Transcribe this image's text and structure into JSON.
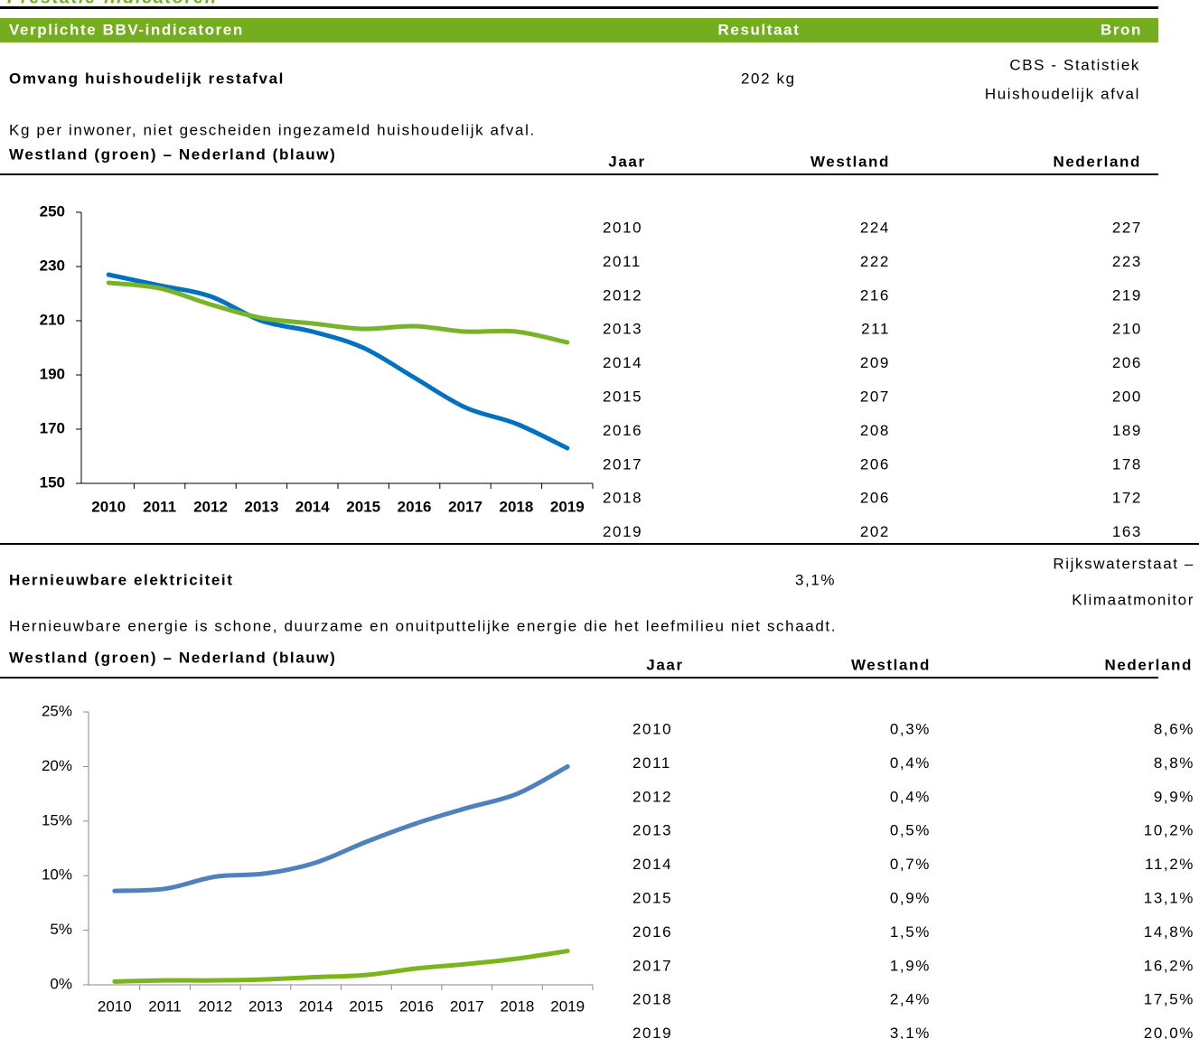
{
  "page_title": "Prestatie-indicatoren",
  "header": {
    "indicator": "Verplichte BBV-indicatoren",
    "result": "Resultaat",
    "source": "Bron"
  },
  "sections": [
    {
      "name": "Omvang huishoudelijk restafval",
      "result": "202 kg",
      "source": [
        "CBS - Statistiek",
        "Huishoudelijk afval"
      ],
      "description": "Kg per inwoner, niet gescheiden ingezameld huishoudelijk afval.",
      "chart_caption": "Westland (groen) – Nederland (blauw)",
      "table": {
        "columns": [
          "Jaar",
          "Westland",
          "Nederland"
        ],
        "rows": [
          [
            "2010",
            "224",
            "227"
          ],
          [
            "2011",
            "222",
            "223"
          ],
          [
            "2012",
            "216",
            "219"
          ],
          [
            "2013",
            "211",
            "210"
          ],
          [
            "2014",
            "209",
            "206"
          ],
          [
            "2015",
            "207",
            "200"
          ],
          [
            "2016",
            "208",
            "189"
          ],
          [
            "2017",
            "206",
            "178"
          ],
          [
            "2018",
            "206",
            "172"
          ],
          [
            "2019",
            "202",
            "163"
          ]
        ]
      },
      "chart": {
        "type": "line",
        "categories": [
          "2010",
          "2011",
          "2012",
          "2013",
          "2014",
          "2015",
          "2016",
          "2017",
          "2018",
          "2019"
        ],
        "series": [
          {
            "color": "#0070c0",
            "values": [
              227,
              223,
              219,
              210,
              206,
              200,
              189,
              178,
              172,
              163
            ]
          },
          {
            "color": "#78b42a",
            "values": [
              224,
              222,
              216,
              211,
              209,
              207,
              208,
              206,
              206,
              202
            ]
          }
        ],
        "ylim": [
          150,
          250
        ],
        "yticks": [
          150,
          170,
          190,
          210,
          230,
          250
        ]
      }
    },
    {
      "name": "Hernieuwbare elektriciteit",
      "result": "3,1%",
      "source": [
        "Rijkswaterstaat –",
        "Klimaatmonitor"
      ],
      "description": "Hernieuwbare energie is schone, duurzame en onuitputtelijke energie die het leefmilieu niet schaadt.",
      "chart_caption": "Westland (groen) – Nederland (blauw)",
      "table": {
        "columns": [
          "Jaar",
          "Westland",
          "Nederland"
        ],
        "rows": [
          [
            "2010",
            "0,3%",
            "8,6%"
          ],
          [
            "2011",
            "0,4%",
            "8,8%"
          ],
          [
            "2012",
            "0,4%",
            "9,9%"
          ],
          [
            "2013",
            "0,5%",
            "10,2%"
          ],
          [
            "2014",
            "0,7%",
            "11,2%"
          ],
          [
            "2015",
            "0,9%",
            "13,1%"
          ],
          [
            "2016",
            "1,5%",
            "14,8%"
          ],
          [
            "2017",
            "1,9%",
            "16,2%"
          ],
          [
            "2018",
            "2,4%",
            "17,5%"
          ],
          [
            "2019",
            "3,1%",
            "20,0%"
          ]
        ]
      },
      "chart": {
        "type": "line",
        "categories": [
          "2010",
          "2011",
          "2012",
          "2013",
          "2014",
          "2015",
          "2016",
          "2017",
          "2018",
          "2019"
        ],
        "series": [
          {
            "color": "#4f81bd",
            "values": [
              8.6,
              8.8,
              9.9,
              10.2,
              11.2,
              13.1,
              14.8,
              16.2,
              17.5,
              20.0
            ]
          },
          {
            "color": "#7ab51d",
            "values": [
              0.3,
              0.4,
              0.4,
              0.5,
              0.7,
              0.9,
              1.5,
              1.9,
              2.4,
              3.1
            ]
          }
        ],
        "ylim": [
          0,
          25
        ],
        "yticks": [
          {
            "value": 0,
            "label": "0%"
          },
          {
            "value": 5,
            "label": "5%"
          },
          {
            "value": 10,
            "label": "10%"
          },
          {
            "value": 15,
            "label": "15%"
          },
          {
            "value": 20,
            "label": "20%"
          },
          {
            "value": 25,
            "label": "25%"
          }
        ]
      }
    }
  ]
}
